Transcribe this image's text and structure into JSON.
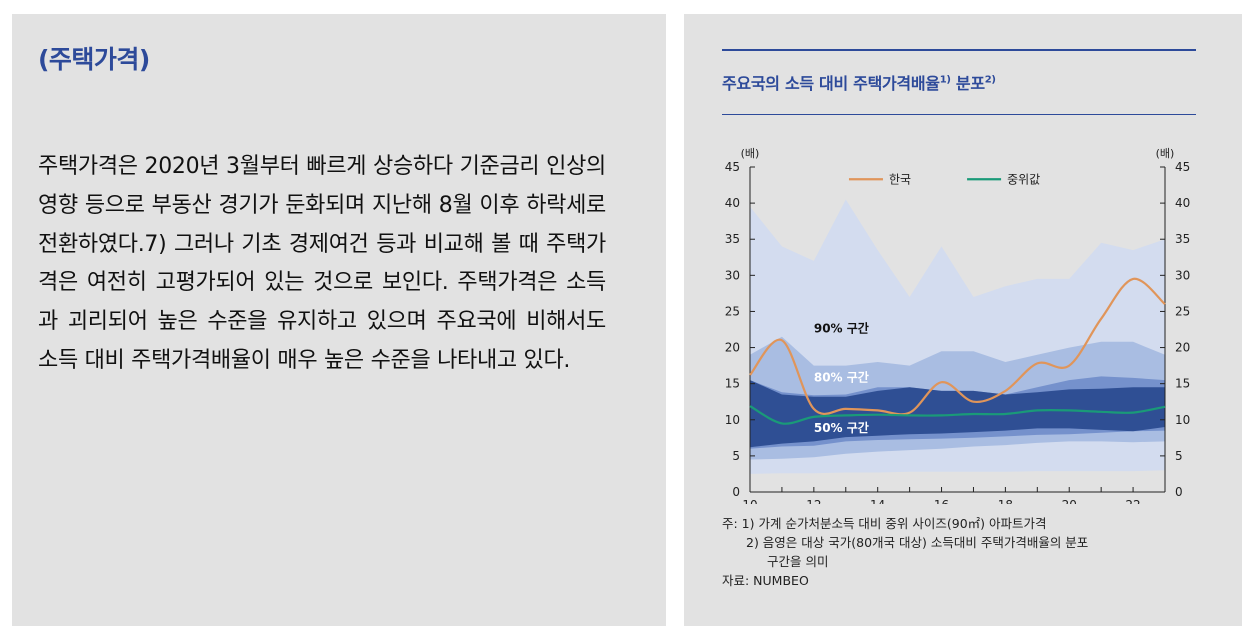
{
  "left": {
    "section_title": "(주택가격)",
    "paragraph": "주택가격은 2020년 3월부터 빠르게 상승하다 기준금리 인상의 영향 등으로 부동산 경기가 둔화되며 지난해 8월 이후 하락세로 전환하였다.7) 그러나 기초 경제여건 등과 비교해 볼 때 주택가격은 여전히 고평가되어 있는 것으로 보인다. 주택가격은 소득과 괴리되어 높은 수준을 유지하고 있으며 주요국에 비해서도 소득 대비 주택가격배율이 매우 높은 수준을 나타내고 있다."
  },
  "chart_title": {
    "main": "주요국의 소득 대비 주택가격배율",
    "sup1": "1)",
    "mid": " 분포",
    "sup2": "2)"
  },
  "colors": {
    "korea_line": "#e0955a",
    "median_line": "#1a9a78",
    "band_outer": "#d3dcef",
    "band_90": "#a9bde2",
    "band_80": "#7591cc",
    "band_50": "#2f4f94",
    "accent": "#2d4a9a"
  },
  "chart_data": {
    "type": "area",
    "x": [
      10,
      11,
      12,
      13,
      14,
      15,
      16,
      17,
      18,
      19,
      20,
      21,
      22,
      23
    ],
    "xticks": [
      "10",
      "12",
      "14",
      "16",
      "18",
      "20",
      "22"
    ],
    "yticks": [
      "0",
      "5",
      "10",
      "15",
      "20",
      "25",
      "30",
      "35",
      "40",
      "45"
    ],
    "ylim": [
      0,
      45
    ],
    "y_unit_left": "(배)",
    "y_unit_right": "(배)",
    "legend": [
      "한국",
      "중위값"
    ],
    "band_labels": [
      "90% 구간",
      "80% 구간",
      "50% 구간"
    ],
    "series": [
      {
        "name": "한국",
        "values": [
          16.2,
          21.0,
          11.5,
          11.5,
          11.3,
          11.0,
          15.2,
          12.5,
          14.0,
          17.8,
          17.5,
          24.0,
          29.5,
          26.0
        ]
      },
      {
        "name": "중위값",
        "values": [
          11.9,
          9.5,
          10.4,
          10.6,
          10.7,
          10.6,
          10.6,
          10.8,
          10.8,
          11.3,
          11.3,
          11.1,
          11.0,
          11.8
        ]
      }
    ],
    "bands": [
      {
        "name": "outer",
        "upper": [
          39.5,
          34.0,
          32.0,
          40.5,
          33.5,
          27.0,
          34.0,
          27.0,
          28.5,
          29.5,
          29.5,
          34.5,
          33.5,
          35.0
        ],
        "lower": [
          2.5,
          2.6,
          2.6,
          2.7,
          2.7,
          2.8,
          2.8,
          2.8,
          2.8,
          2.9,
          2.9,
          2.9,
          2.9,
          3.0
        ]
      },
      {
        "name": "90%",
        "upper": [
          19.0,
          21.5,
          17.5,
          17.5,
          18.0,
          17.5,
          19.5,
          19.5,
          18.0,
          19.0,
          20.0,
          20.8,
          20.8,
          19.0
        ],
        "lower": [
          4.5,
          4.6,
          4.8,
          5.3,
          5.6,
          5.8,
          6.0,
          6.3,
          6.5,
          6.8,
          7.0,
          7.0,
          6.9,
          7.0
        ]
      },
      {
        "name": "80%",
        "upper": [
          15.5,
          13.8,
          13.4,
          13.5,
          14.5,
          14.5,
          14.0,
          14.0,
          13.5,
          14.5,
          15.5,
          16.0,
          15.8,
          15.5
        ],
        "lower": [
          6.0,
          6.3,
          6.4,
          7.0,
          7.2,
          7.3,
          7.4,
          7.5,
          7.7,
          7.9,
          8.0,
          8.2,
          8.4,
          8.5
        ]
      },
      {
        "name": "50%",
        "upper": [
          15.5,
          13.5,
          13.2,
          13.2,
          14.0,
          14.5,
          14.0,
          14.0,
          13.5,
          13.8,
          14.2,
          14.3,
          14.5,
          14.5
        ],
        "lower": [
          6.2,
          6.7,
          7.0,
          7.6,
          7.8,
          8.0,
          8.1,
          8.3,
          8.5,
          8.8,
          8.8,
          8.6,
          8.4,
          9.0
        ]
      }
    ]
  },
  "notes": {
    "line1": "주: 1) 가계 순가처분소득 대비 중위 사이즈(90㎡) 아파트가격",
    "line2": "2) 음영은 대상 국가(80개국 대상) 소득대비 주택가격배율의 분포",
    "line3": "구간을 의미",
    "source": "자료: NUMBEO"
  }
}
